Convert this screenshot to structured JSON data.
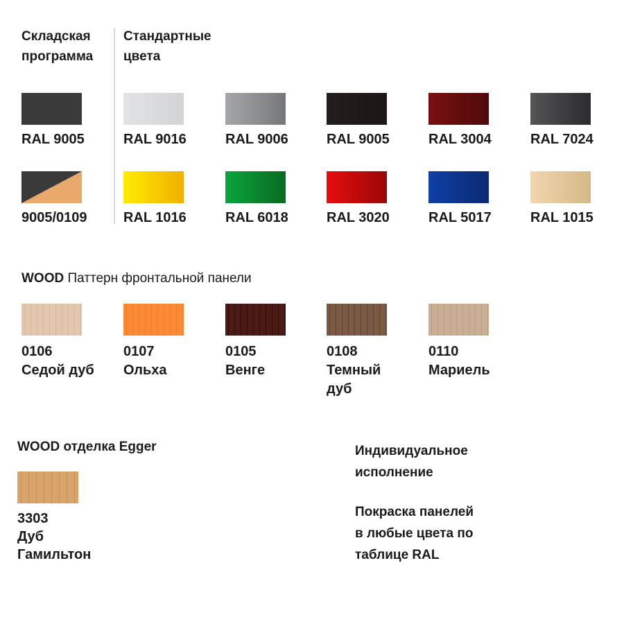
{
  "stock": {
    "title_line1": "Складская",
    "title_line2": "программа",
    "items": [
      {
        "label": "RAL 9005",
        "color": "#3a3a3b"
      },
      {
        "label": "9005/0109",
        "color": "#3a3a3b",
        "color2": "#e8a96a"
      }
    ]
  },
  "standard": {
    "title_line1": "Стандартные",
    "title_line2": "цвета",
    "items": [
      {
        "label": "RAL 9016",
        "from": "#e2e3e5",
        "to": "#d2d3d5"
      },
      {
        "label": "RAL 9006",
        "from": "#a6a7aa",
        "to": "#76777a"
      },
      {
        "label": "RAL 9005",
        "from": "#241d1d",
        "to": "#1c1616"
      },
      {
        "label": "RAL 3004",
        "from": "#7a1010",
        "to": "#4e0a0a"
      },
      {
        "label": "RAL 7024",
        "from": "#555558",
        "to": "#2c2c2f"
      },
      {
        "label": "RAL 1016",
        "from": "#ffec00",
        "to": "#f0b000"
      },
      {
        "label": "RAL 6018",
        "from": "#0aa43c",
        "to": "#0a6a22"
      },
      {
        "label": "RAL 3020",
        "from": "#e60d0d",
        "to": "#9a0707"
      },
      {
        "label": "RAL 5017",
        "from": "#0f3fa6",
        "to": "#0b2a72"
      },
      {
        "label": "RAL 1015",
        "from": "#f2d6ae",
        "to": "#d4b888"
      }
    ]
  },
  "wood": {
    "title_bold": "WOOD",
    "title_rest": " Паттерн фронтальной панели",
    "items": [
      {
        "code": "0106",
        "name1": "Седой дуб",
        "name2": "",
        "color": "#e2c7ae",
        "grain": "#d4b89e"
      },
      {
        "code": "0107",
        "name1": "Ольха",
        "name2": "",
        "color": "#fb8a36",
        "grain": "#ee7a26"
      },
      {
        "code": "0105",
        "name1": "Венге",
        "name2": "",
        "color": "#4a1a14",
        "grain": "#2e0c0a"
      },
      {
        "code": "0108",
        "name1": "Темный",
        "name2": "дуб",
        "color": "#7a5a42",
        "grain": "#5e4230"
      },
      {
        "code": "0110",
        "name1": "Мариель",
        "name2": "",
        "color": "#c9ae93",
        "grain": "#b89e84"
      }
    ]
  },
  "egger": {
    "title": "WOOD отделка Egger",
    "code": "3303",
    "name1": "Дуб",
    "name2": "Гамильтон",
    "color": "#d9a46a",
    "grain": "#c48e56"
  },
  "custom": {
    "title_line1": "Индивидуальное",
    "title_line2": "исполнение",
    "text_line1": "Покраска панелей",
    "text_line2": "в любые цвета по",
    "text_line3": "таблице RAL"
  }
}
